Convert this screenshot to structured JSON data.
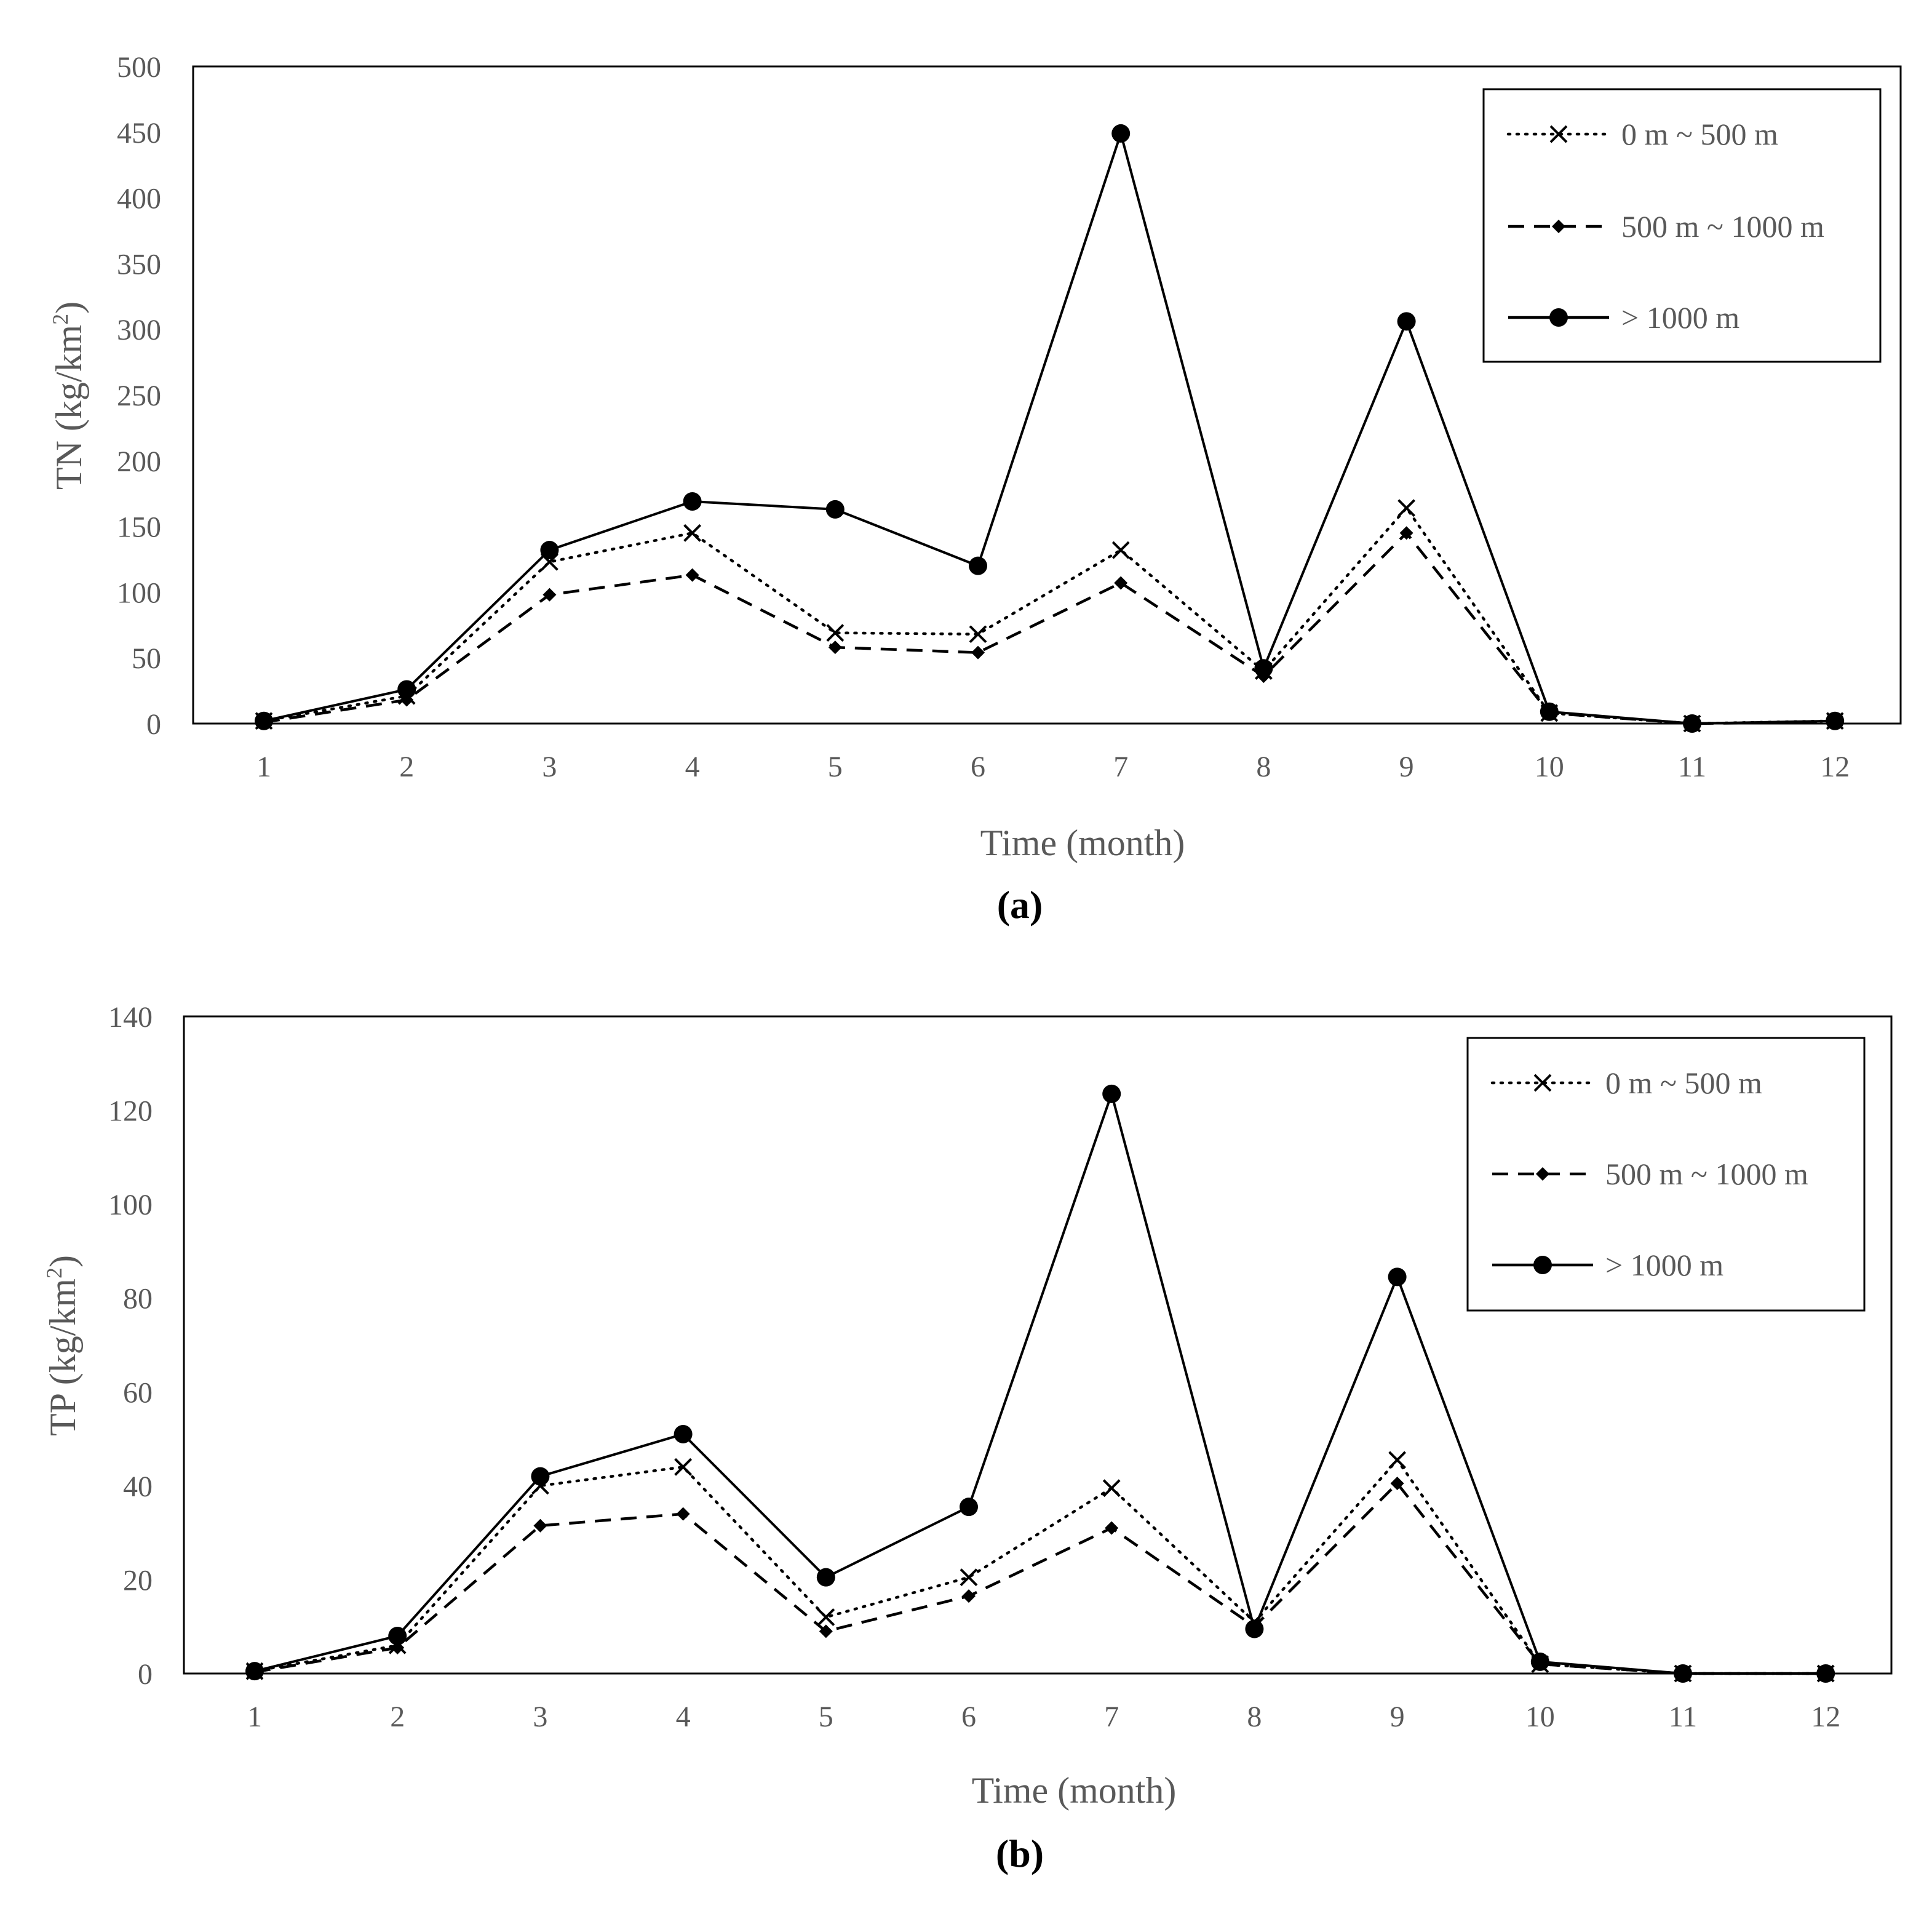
{
  "chart_data": [
    {
      "type": "line",
      "panel_label": "(a)",
      "xlabel": "Time (month)",
      "ylabel": "TN (kg/km",
      "ylabel_sup": "2",
      "ylabel_end": ")",
      "ylim": [
        0,
        500
      ],
      "yticks": [
        "0",
        "50",
        "100",
        "150",
        "200",
        "250",
        "300",
        "350",
        "400",
        "450",
        "500"
      ],
      "categories": [
        "1",
        "2",
        "3",
        "4",
        "5",
        "6",
        "7",
        "8",
        "9",
        "10",
        "11",
        "12"
      ],
      "legend_position": "top-right",
      "series": [
        {
          "name": "0 m ~ 500 m",
          "style": "dotted",
          "marker": "x",
          "values": [
            2,
            21,
            123,
            145,
            69,
            68,
            132,
            40,
            164,
            8,
            0,
            2
          ]
        },
        {
          "name": "500 m ~ 1000 m",
          "style": "dashed",
          "marker": "diamond",
          "values": [
            1,
            18,
            98,
            113,
            58,
            54,
            107,
            36,
            145,
            8,
            0,
            1
          ]
        },
        {
          "name": "> 1000 m",
          "style": "solid",
          "marker": "circle",
          "values": [
            2,
            26,
            132,
            169,
            163,
            120,
            449,
            42,
            306,
            9,
            0,
            2
          ]
        }
      ]
    },
    {
      "type": "line",
      "panel_label": "(b)",
      "xlabel": "Time (month)",
      "ylabel": "TP (kg/km",
      "ylabel_sup": "2",
      "ylabel_end": ")",
      "ylim": [
        0,
        140
      ],
      "yticks": [
        "0",
        "20",
        "40",
        "60",
        "80",
        "100",
        "120",
        "140"
      ],
      "categories": [
        "1",
        "2",
        "3",
        "4",
        "5",
        "6",
        "7",
        "8",
        "9",
        "10",
        "11",
        "12"
      ],
      "legend_position": "top-right",
      "series": [
        {
          "name": "0 m ~ 500 m",
          "style": "dotted",
          "marker": "x",
          "values": [
            0.5,
            6,
            40,
            44,
            12,
            20.5,
            39.5,
            11,
            45.5,
            2,
            0,
            0
          ]
        },
        {
          "name": "500 m ~ 1000 m",
          "style": "dashed",
          "marker": "diamond",
          "values": [
            0.3,
            5.5,
            31.5,
            34,
            9,
            16.5,
            31,
            10,
            40.5,
            2,
            0,
            0
          ]
        },
        {
          "name": "> 1000 m",
          "style": "solid",
          "marker": "circle",
          "values": [
            0.5,
            8,
            42,
            51,
            20.5,
            35.5,
            123.5,
            9.5,
            84.5,
            2.5,
            0,
            0
          ]
        }
      ]
    }
  ]
}
